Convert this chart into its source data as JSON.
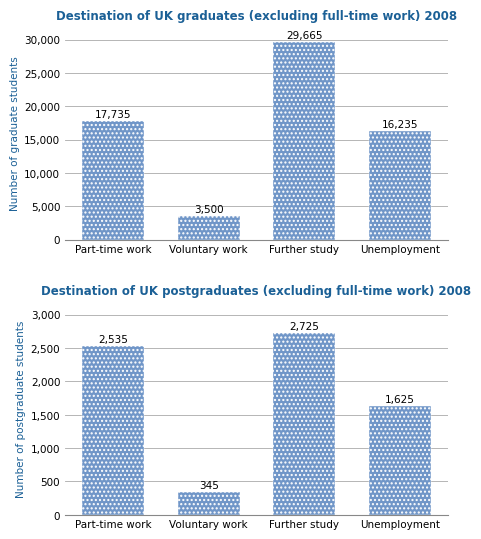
{
  "grad_title": "Destination of UK graduates (excluding full-time work) 2008",
  "postgrad_title": "Destination of UK postgraduates (excluding full-time work) 2008",
  "categories": [
    "Part-time work",
    "Voluntary work",
    "Further study",
    "Unemployment"
  ],
  "grad_values": [
    17735,
    3500,
    29665,
    16235
  ],
  "postgrad_values": [
    2535,
    345,
    2725,
    1625
  ],
  "grad_labels": [
    "17,735",
    "3,500",
    "29,665",
    "16,235"
  ],
  "postgrad_labels": [
    "2,535",
    "345",
    "2,725",
    "1,625"
  ],
  "bar_color": "#7096C8",
  "grad_ylabel": "Number of graduate students",
  "postgrad_ylabel": "Number of postgraduate students",
  "grad_ylim": [
    0,
    32000
  ],
  "postgrad_ylim": [
    0,
    3200
  ],
  "grad_yticks": [
    0,
    5000,
    10000,
    15000,
    20000,
    25000,
    30000
  ],
  "postgrad_yticks": [
    0,
    500,
    1000,
    1500,
    2000,
    2500,
    3000
  ],
  "title_color": "#1B6096",
  "ylabel_color": "#1B6096",
  "background_color": "#FFFFFF",
  "title_fontsize": 8.5,
  "label_fontsize": 7.5,
  "tick_fontsize": 7.5,
  "ylabel_fontsize": 7.5,
  "bar_width": 0.65
}
